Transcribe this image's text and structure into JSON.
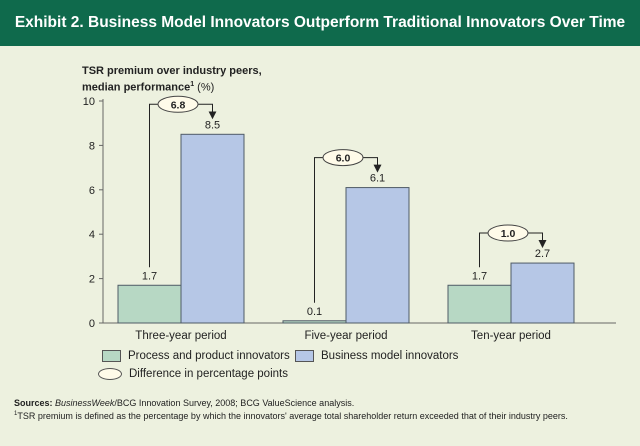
{
  "header": {
    "title": "Exhibit 2. Business Model Innovators Outperform Traditional Innovators Over Time"
  },
  "colors": {
    "header_bg": "#0f6a4c",
    "process": "#b7d8c4",
    "business": "#b6c7e6",
    "bar_stroke": "#4f5b66",
    "ellipse_fill": "#fffbe9"
  },
  "ylabel": {
    "line1": "TSR premium over industry peers,",
    "line2": "median performance",
    "sup": "1",
    "unit": "(%)"
  },
  "chart_data": {
    "type": "bar",
    "categories": [
      "Three-year period",
      "Five-year period",
      "Ten-year period"
    ],
    "series": [
      {
        "name": "Process and product innovators",
        "values": [
          1.7,
          0.1,
          1.7
        ]
      },
      {
        "name": "Business model innovators",
        "values": [
          8.5,
          6.1,
          2.7
        ]
      }
    ],
    "differences": [
      6.8,
      6.0,
      1.0
    ],
    "difference_labels": [
      "6.8",
      "6.0",
      "1.0"
    ],
    "value_labels": [
      [
        "1.7",
        "8.5"
      ],
      [
        "0.1",
        "6.1"
      ],
      [
        "1.7",
        "2.7"
      ]
    ],
    "ylim": [
      0,
      10
    ],
    "yticks": [
      0,
      2,
      4,
      6,
      8,
      10
    ],
    "ylabel": "TSR premium over industry peers, median performance (%)",
    "xlabel": ""
  },
  "legend": {
    "process": "Process and product innovators",
    "business": "Business model innovators",
    "difference": "Difference in percentage points"
  },
  "footnotes": {
    "sources_label": "Sources:",
    "sources_italic": "BusinessWeek",
    "sources_text": "/BCG Innovation Survey, 2008; BCG ValueScience analysis.",
    "note_sup": "1",
    "note_text": "TSR premium is defined as the percentage by which the innovators' average total shareholder return exceeded that of their industry peers."
  }
}
